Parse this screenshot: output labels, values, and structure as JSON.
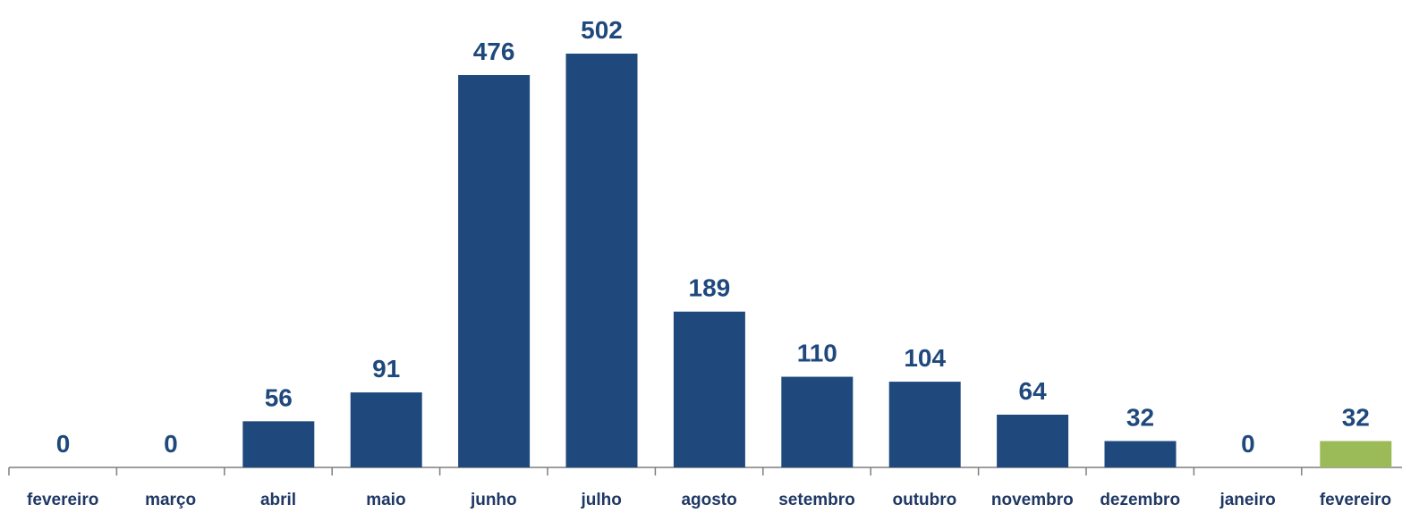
{
  "chart_data": {
    "type": "bar",
    "categories": [
      "fevereiro",
      "março",
      "abril",
      "maio",
      "junho",
      "julho",
      "agosto",
      "setembro",
      "outubro",
      "novembro",
      "dezembro",
      "janeiro",
      "fevereiro"
    ],
    "values": [
      0,
      0,
      56,
      91,
      476,
      502,
      189,
      110,
      104,
      64,
      32,
      0,
      32
    ],
    "colors": [
      "#1f497d",
      "#1f497d",
      "#1f497d",
      "#1f497d",
      "#1f497d",
      "#1f497d",
      "#1f497d",
      "#1f497d",
      "#1f497d",
      "#1f497d",
      "#1f497d",
      "#1f497d",
      "#9bbb59"
    ]
  }
}
